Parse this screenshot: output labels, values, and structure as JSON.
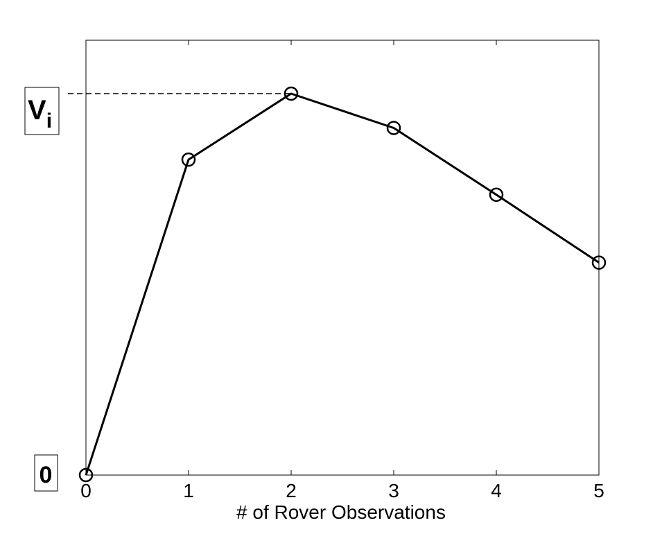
{
  "chart_data": {
    "type": "line",
    "title": "",
    "xlabel": "# of Rover Observations",
    "ylabel": "",
    "x": [
      0,
      1,
      2,
      3,
      4,
      5
    ],
    "xticks": [
      "0",
      "1",
      "2",
      "3",
      "4",
      "5"
    ],
    "series": [
      {
        "values": [
          0,
          0.827,
          1.0,
          0.91,
          0.735,
          0.557
        ]
      }
    ],
    "xlim": [
      0,
      5
    ],
    "ylim": [
      0,
      1.14
    ],
    "grid": false,
    "annotations": {
      "zero_label": "0",
      "vi_label": "V",
      "vi_subscript": "i",
      "vi_value": 1.0
    },
    "colors": {
      "line": "#000000",
      "marker": "#000000"
    }
  }
}
